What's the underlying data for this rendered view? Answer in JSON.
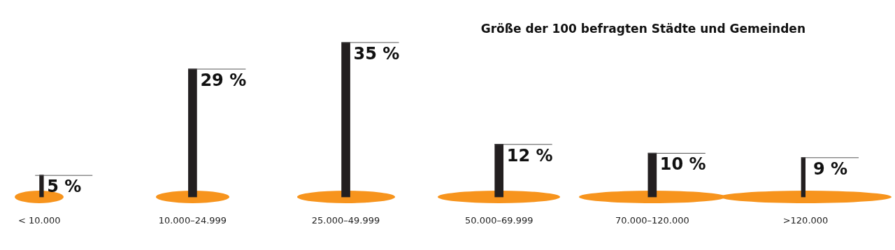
{
  "chart_data": {
    "type": "bar",
    "title": "Größe der 100 befragten Städte und Gemeinden",
    "categories": [
      "< 10.000",
      "10.000–24.999",
      "25.000–49.999",
      "50.000–69.999",
      "70.000–120.000",
      ">120.000"
    ],
    "values": [
      5,
      29,
      35,
      12,
      10,
      9
    ],
    "value_labels": [
      "5 %",
      "29 %",
      "35 %",
      "12 %",
      "10 %",
      "9 %"
    ],
    "color": "#231f20",
    "grid": false,
    "legend": false
  }
}
